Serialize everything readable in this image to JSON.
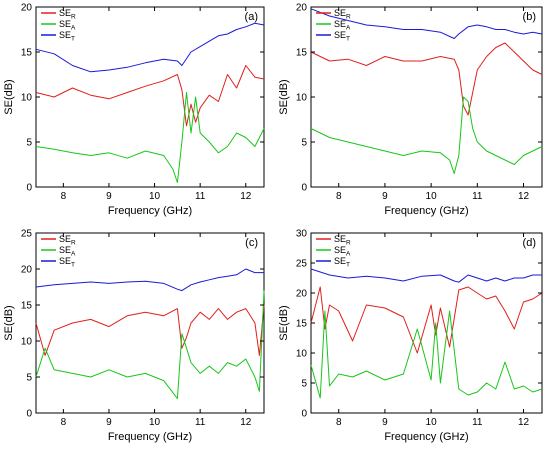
{
  "chart_data": [
    {
      "type": "line",
      "panel_label": "(a)",
      "xlabel": "Frequency (GHz)",
      "ylabel": "SE(dB)",
      "xlim": [
        7.4,
        12.4
      ],
      "ylim": [
        0,
        20
      ],
      "xticks": [
        8,
        9,
        10,
        11,
        12
      ],
      "yticks": [
        0,
        5,
        10,
        15,
        20
      ],
      "legend_position": "top-left",
      "grid": false,
      "series": [
        {
          "name": "SE",
          "subscript": "R",
          "color": "#e0201b",
          "x": [
            7.4,
            7.8,
            8.2,
            8.6,
            9.0,
            9.4,
            9.8,
            10.2,
            10.5,
            10.6,
            10.7,
            10.8,
            10.9,
            11.0,
            11.2,
            11.4,
            11.6,
            11.8,
            12.0,
            12.2,
            12.4
          ],
          "y": [
            10.5,
            10.0,
            11.0,
            10.2,
            9.8,
            10.5,
            11.2,
            11.8,
            12.5,
            10.8,
            6.8,
            9.2,
            7.2,
            8.8,
            10.2,
            9.5,
            12.5,
            11.0,
            13.5,
            12.2,
            12.0
          ]
        },
        {
          "name": "SE",
          "subscript": "A",
          "color": "#18c718",
          "x": [
            7.4,
            7.8,
            8.2,
            8.6,
            9.0,
            9.4,
            9.8,
            10.2,
            10.4,
            10.5,
            10.6,
            10.7,
            10.8,
            10.9,
            11.0,
            11.2,
            11.4,
            11.6,
            11.8,
            12.0,
            12.2,
            12.4
          ],
          "y": [
            4.5,
            4.2,
            3.8,
            3.5,
            3.8,
            3.2,
            4.0,
            3.5,
            2.0,
            0.5,
            5.0,
            10.5,
            6.0,
            10.0,
            6.0,
            5.0,
            3.8,
            4.5,
            6.0,
            5.5,
            4.5,
            6.5
          ]
        },
        {
          "name": "SE",
          "subscript": "T",
          "color": "#1a1ad9",
          "x": [
            7.4,
            7.8,
            8.2,
            8.6,
            9.0,
            9.4,
            9.8,
            10.2,
            10.5,
            10.6,
            10.8,
            11.0,
            11.2,
            11.4,
            11.6,
            11.8,
            12.0,
            12.2,
            12.4
          ],
          "y": [
            15.3,
            14.8,
            13.5,
            12.8,
            13.0,
            13.3,
            13.8,
            14.2,
            14.0,
            13.5,
            15.0,
            15.6,
            16.2,
            16.8,
            17.0,
            17.5,
            17.8,
            18.2,
            18.0
          ]
        }
      ]
    },
    {
      "type": "line",
      "panel_label": "(b)",
      "xlabel": "Frequency (GHz)",
      "ylabel": "SE(dB)",
      "xlim": [
        7.4,
        12.4
      ],
      "ylim": [
        0,
        20
      ],
      "xticks": [
        8,
        9,
        10,
        11,
        12
      ],
      "yticks": [
        0,
        5,
        10,
        15,
        20
      ],
      "legend_position": "top-left",
      "grid": false,
      "series": [
        {
          "name": "SE",
          "subscript": "R",
          "color": "#e0201b",
          "x": [
            7.4,
            7.8,
            8.2,
            8.6,
            9.0,
            9.4,
            9.8,
            10.2,
            10.5,
            10.6,
            10.7,
            10.8,
            10.9,
            11.0,
            11.2,
            11.4,
            11.6,
            11.8,
            12.0,
            12.2,
            12.4
          ],
          "y": [
            15.0,
            14.0,
            14.2,
            13.5,
            14.5,
            14.0,
            14.0,
            14.5,
            14.2,
            13.0,
            9.0,
            8.0,
            10.5,
            13.0,
            14.5,
            15.5,
            16.0,
            15.0,
            14.0,
            13.0,
            12.5
          ]
        },
        {
          "name": "SE",
          "subscript": "A",
          "color": "#18c718",
          "x": [
            7.4,
            7.8,
            8.2,
            8.6,
            9.0,
            9.4,
            9.8,
            10.2,
            10.4,
            10.5,
            10.6,
            10.7,
            10.8,
            10.9,
            11.0,
            11.2,
            11.4,
            11.6,
            11.8,
            12.0,
            12.2,
            12.4
          ],
          "y": [
            6.5,
            5.5,
            5.0,
            4.5,
            4.0,
            3.5,
            4.0,
            3.8,
            3.0,
            1.5,
            3.5,
            10.0,
            9.5,
            6.5,
            5.0,
            4.0,
            3.5,
            3.0,
            2.5,
            3.5,
            4.0,
            4.5
          ]
        },
        {
          "name": "SE",
          "subscript": "T",
          "color": "#1a1ad9",
          "x": [
            7.4,
            7.8,
            8.2,
            8.6,
            9.0,
            9.4,
            9.8,
            10.2,
            10.5,
            10.6,
            10.8,
            11.0,
            11.2,
            11.4,
            11.6,
            11.8,
            12.0,
            12.2,
            12.4
          ],
          "y": [
            19.8,
            19.0,
            18.5,
            18.0,
            17.8,
            17.5,
            17.5,
            17.2,
            16.5,
            17.0,
            17.8,
            18.0,
            17.8,
            17.5,
            17.5,
            17.2,
            17.0,
            17.2,
            17.0
          ]
        }
      ]
    },
    {
      "type": "line",
      "panel_label": "(c)",
      "xlabel": "Frequency (GHz)",
      "ylabel": "SE(dB)",
      "xlim": [
        7.4,
        12.4
      ],
      "ylim": [
        0,
        25
      ],
      "xticks": [
        8,
        9,
        10,
        11,
        12
      ],
      "yticks": [
        0,
        5,
        10,
        15,
        20,
        25
      ],
      "legend_position": "top-left",
      "grid": false,
      "series": [
        {
          "name": "SE",
          "subscript": "R",
          "color": "#e0201b",
          "x": [
            7.4,
            7.6,
            7.8,
            8.2,
            8.6,
            9.0,
            9.4,
            9.8,
            10.2,
            10.5,
            10.6,
            10.7,
            10.8,
            11.0,
            11.2,
            11.4,
            11.6,
            11.8,
            12.0,
            12.2,
            12.3,
            12.4
          ],
          "y": [
            12.5,
            8.0,
            11.5,
            12.5,
            13.0,
            12.0,
            13.5,
            14.0,
            13.5,
            14.5,
            9.0,
            10.5,
            12.5,
            14.0,
            13.0,
            14.5,
            13.0,
            14.0,
            14.5,
            12.5,
            8.0,
            15.0
          ]
        },
        {
          "name": "SE",
          "subscript": "A",
          "color": "#18c718",
          "x": [
            7.4,
            7.6,
            7.8,
            8.2,
            8.6,
            9.0,
            9.4,
            9.8,
            10.2,
            10.5,
            10.6,
            10.7,
            10.8,
            11.0,
            11.2,
            11.4,
            11.6,
            11.8,
            12.0,
            12.2,
            12.3,
            12.4
          ],
          "y": [
            5.0,
            9.0,
            6.0,
            5.5,
            5.0,
            6.0,
            5.0,
            5.5,
            4.5,
            2.0,
            11.0,
            9.0,
            7.0,
            5.5,
            6.5,
            5.5,
            7.0,
            6.5,
            7.5,
            5.0,
            3.0,
            17.0
          ]
        },
        {
          "name": "SE",
          "subscript": "T",
          "color": "#1a1ad9",
          "x": [
            7.4,
            7.8,
            8.2,
            8.6,
            9.0,
            9.4,
            9.8,
            10.2,
            10.5,
            10.6,
            10.8,
            11.0,
            11.2,
            11.4,
            11.6,
            11.8,
            12.0,
            12.2,
            12.4
          ],
          "y": [
            17.5,
            17.8,
            18.0,
            18.2,
            18.0,
            18.2,
            18.3,
            18.0,
            17.2,
            17.0,
            17.8,
            18.2,
            18.5,
            18.8,
            19.0,
            19.2,
            20.0,
            19.5,
            19.5
          ]
        }
      ]
    },
    {
      "type": "line",
      "panel_label": "(d)",
      "xlabel": "Frequency (GHz)",
      "ylabel": "SE(dB)",
      "xlim": [
        7.4,
        12.4
      ],
      "ylim": [
        0,
        30
      ],
      "xticks": [
        8,
        9,
        10,
        11,
        12
      ],
      "yticks": [
        0,
        5,
        10,
        15,
        20,
        25,
        30
      ],
      "legend_position": "top-left",
      "grid": false,
      "series": [
        {
          "name": "SE",
          "subscript": "R",
          "color": "#e0201b",
          "x": [
            7.4,
            7.6,
            7.7,
            7.8,
            8.0,
            8.3,
            8.6,
            9.0,
            9.4,
            9.7,
            10.0,
            10.1,
            10.2,
            10.4,
            10.6,
            10.8,
            11.0,
            11.2,
            11.4,
            11.6,
            11.8,
            12.0,
            12.2,
            12.4
          ],
          "y": [
            15.0,
            21.0,
            14.0,
            18.0,
            17.0,
            12.0,
            18.0,
            17.5,
            16.0,
            10.0,
            18.0,
            13.0,
            17.5,
            11.0,
            20.5,
            21.0,
            20.0,
            19.0,
            19.5,
            17.0,
            14.0,
            18.5,
            19.0,
            20.0
          ]
        },
        {
          "name": "SE",
          "subscript": "A",
          "color": "#18c718",
          "x": [
            7.4,
            7.6,
            7.7,
            7.8,
            8.0,
            8.3,
            8.6,
            9.0,
            9.4,
            9.7,
            10.0,
            10.1,
            10.2,
            10.4,
            10.6,
            10.8,
            11.0,
            11.2,
            11.4,
            11.6,
            11.8,
            12.0,
            12.2,
            12.4
          ],
          "y": [
            8.0,
            2.5,
            17.0,
            4.5,
            6.5,
            6.0,
            7.0,
            5.5,
            6.5,
            14.0,
            5.5,
            15.0,
            5.0,
            17.0,
            4.0,
            3.0,
            3.5,
            5.0,
            4.0,
            8.5,
            4.0,
            4.5,
            3.5,
            4.0
          ]
        },
        {
          "name": "SE",
          "subscript": "T",
          "color": "#1a1ad9",
          "x": [
            7.4,
            7.8,
            8.2,
            8.6,
            9.0,
            9.4,
            9.8,
            10.2,
            10.5,
            10.6,
            10.8,
            11.0,
            11.2,
            11.4,
            11.6,
            11.8,
            12.0,
            12.2,
            12.4
          ],
          "y": [
            24.0,
            23.0,
            22.5,
            22.8,
            22.5,
            22.0,
            22.8,
            23.0,
            22.0,
            21.8,
            23.0,
            22.5,
            22.0,
            22.5,
            22.0,
            22.5,
            22.5,
            23.0,
            23.0
          ]
        }
      ]
    }
  ]
}
